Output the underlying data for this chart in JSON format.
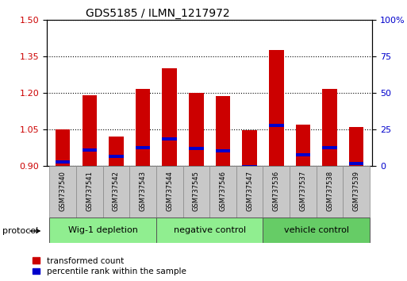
{
  "title": "GDS5185 / ILMN_1217972",
  "samples": [
    "GSM737540",
    "GSM737541",
    "GSM737542",
    "GSM737543",
    "GSM737544",
    "GSM737545",
    "GSM737546",
    "GSM737547",
    "GSM737536",
    "GSM737537",
    "GSM737538",
    "GSM737539"
  ],
  "red_bar_tops": [
    1.05,
    1.19,
    1.02,
    1.215,
    1.3,
    1.2,
    1.185,
    1.045,
    1.375,
    1.07,
    1.215,
    1.06
  ],
  "blue_marker_vals": [
    0.915,
    0.965,
    0.94,
    0.975,
    1.01,
    0.97,
    0.96,
    0.895,
    1.065,
    0.945,
    0.975,
    0.91
  ],
  "bar_base": 0.9,
  "ylim_left": [
    0.9,
    1.5
  ],
  "ylim_right": [
    0,
    100
  ],
  "yticks_left": [
    0.9,
    1.05,
    1.2,
    1.35,
    1.5
  ],
  "yticks_right": [
    0,
    25,
    50,
    75,
    100
  ],
  "groups": [
    {
      "label": "Wig-1 depletion",
      "start": 0,
      "end": 4
    },
    {
      "label": "negative control",
      "start": 4,
      "end": 8
    },
    {
      "label": "vehicle control",
      "start": 8,
      "end": 12
    }
  ],
  "bar_color": "#cc0000",
  "blue_color": "#0000cc",
  "plot_bg": "#ffffff",
  "left_axis_color": "#cc0000",
  "right_axis_color": "#0000cc",
  "bar_width": 0.55,
  "protocol_label": "protocol",
  "legend_red": "transformed count",
  "legend_blue": "percentile rank within the sample",
  "label_box_color": "#c8c8c8",
  "group_colors": [
    "#90ee90",
    "#90ee90",
    "#66cc66"
  ]
}
